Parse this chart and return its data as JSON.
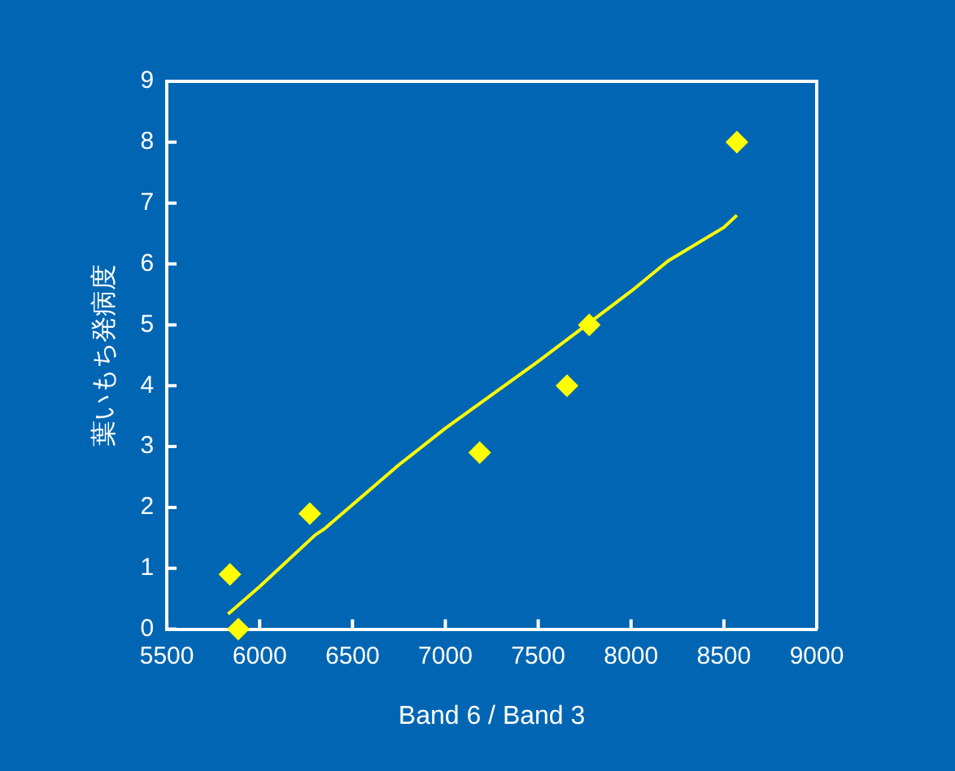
{
  "chart_data": {
    "type": "scatter",
    "xlabel": "Band 6 / Band 3",
    "ylabel": "葉いもち発病度",
    "xlim": [
      5500,
      9000
    ],
    "xticks": [
      5500,
      6000,
      6500,
      7000,
      7500,
      8000,
      8500,
      9000
    ],
    "ylim": [
      0,
      9
    ],
    "yticks": [
      0,
      1,
      2,
      3,
      4,
      5,
      6,
      7,
      8,
      9
    ],
    "grid": false,
    "legend": false,
    "series": [
      {
        "type": "scatter",
        "color": "#ffff00",
        "marker": "diamond",
        "x": [
          5840,
          5885,
          6270,
          7185,
          7655,
          7775,
          8570
        ],
        "values": [
          0.9,
          0,
          1.9,
          2.9,
          4,
          5,
          8
        ]
      },
      {
        "type": "line",
        "color": "#ffff00",
        "marker": "none",
        "x": [
          5830,
          6000,
          6300,
          6350,
          6750,
          7000,
          7500,
          8000,
          8200,
          8500,
          8570
        ],
        "values": [
          0.25,
          0.7,
          1.55,
          1.65,
          2.7,
          3.3,
          4.4,
          5.55,
          6.05,
          6.6,
          6.8
        ]
      }
    ]
  }
}
